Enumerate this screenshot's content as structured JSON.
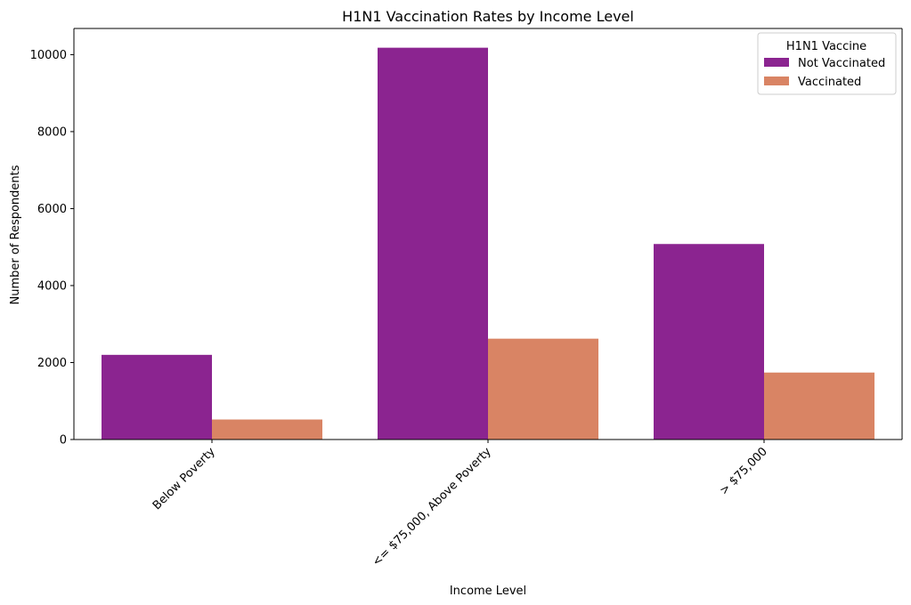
{
  "chart_data": {
    "type": "bar",
    "title": "H1N1 Vaccination Rates by Income Level",
    "xlabel": "Income Level",
    "ylabel": "Number of Respondents",
    "categories": [
      "Below Poverty",
      "<= $75,000, Above Poverty",
      "> $75,000"
    ],
    "series": [
      {
        "name": "Not Vaccinated",
        "values": [
          2200,
          10180,
          5080
        ],
        "color": "#8b2490"
      },
      {
        "name": "Vaccinated",
        "values": [
          520,
          2620,
          1740
        ],
        "color": "#d98464"
      }
    ],
    "ylim": [
      0,
      10680
    ],
    "yticks": [
      0,
      2000,
      4000,
      6000,
      8000,
      10000
    ],
    "xtick_rotation_deg": 45,
    "grid": false,
    "legend": {
      "title": "H1N1 Vaccine",
      "placement": "top-right"
    }
  }
}
